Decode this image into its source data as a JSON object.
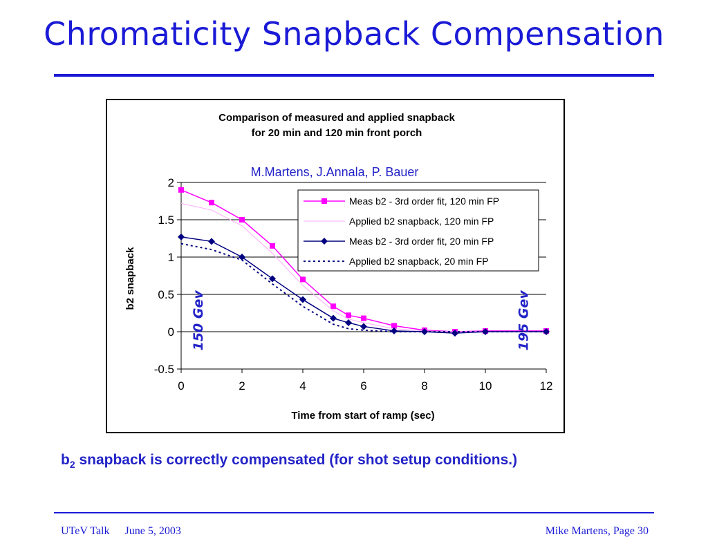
{
  "slide": {
    "title": "Chromaticity Snapback Compensation",
    "caption_main": "b",
    "caption_sub": "2",
    "caption_rest": " snapback is correctly compensated (for shot setup conditions.)",
    "footer_talk": "UTeV Talk",
    "footer_date": "June 5, 2003",
    "footer_right": "Mike Martens, Page 30"
  },
  "colors": {
    "title": "#1a1ad6",
    "meas120": "#ff00ff",
    "applied120": "#ffaaff",
    "meas20": "#000080",
    "applied20": "#000080",
    "annotation": "#2323c8"
  },
  "chart_data": {
    "type": "line",
    "title_line1": "Comparison of measured and applied snapback",
    "title_line2": "for 20 min and 120 min front porch",
    "subtitle": "M.Martens, J.Annala, P. Bauer",
    "xlabel": "Time from start of ramp (sec)",
    "ylabel": "b2 snapback",
    "xlim": [
      0,
      12
    ],
    "ylim": [
      -0.5,
      2
    ],
    "xticks": [
      0,
      2,
      4,
      6,
      8,
      10,
      12
    ],
    "yticks": [
      -0.5,
      0,
      0.5,
      1,
      1.5,
      2
    ],
    "ytick_labels": [
      "-0.5",
      "0",
      "0.5",
      "1",
      "1.5",
      "2"
    ],
    "grid_y": true,
    "legend_position": "top-right",
    "annotations": [
      {
        "text": "150 Gev",
        "x": 0.7,
        "y": 0.15
      },
      {
        "text": "195 Gev",
        "x": 11.4,
        "y": 0.15
      }
    ],
    "series": [
      {
        "name": "Meas b2 - 3rd order fit, 120 min FP",
        "style": "solid-square",
        "x": [
          0,
          1,
          2,
          3,
          4,
          5,
          5.5,
          6,
          7,
          8,
          9,
          10,
          12
        ],
        "y": [
          1.9,
          1.73,
          1.5,
          1.15,
          0.7,
          0.34,
          0.22,
          0.18,
          0.08,
          0.02,
          0.0,
          0.01,
          0.01
        ]
      },
      {
        "name": "Applied b2 snapback, 120 min FP",
        "style": "thin",
        "x": [
          0,
          1,
          2,
          3,
          4,
          5,
          5.5,
          6,
          7,
          8,
          9,
          10,
          12
        ],
        "y": [
          1.72,
          1.63,
          1.42,
          1.05,
          0.62,
          0.28,
          0.17,
          0.12,
          0.04,
          0.01,
          0.0,
          0.0,
          0.0
        ]
      },
      {
        "name": "Meas b2 - 3rd order fit, 20 min FP",
        "style": "solid-diamond",
        "x": [
          0,
          1,
          2,
          3,
          4,
          5,
          5.5,
          6,
          7,
          8,
          9,
          10,
          12
        ],
        "y": [
          1.27,
          1.21,
          1.0,
          0.71,
          0.43,
          0.18,
          0.12,
          0.07,
          0.01,
          0.0,
          -0.02,
          0.0,
          0.0
        ]
      },
      {
        "name": "Applied b2 snapback, 20 min FP",
        "style": "dotted",
        "x": [
          0,
          1,
          2,
          3,
          4,
          5,
          5.5,
          6,
          7,
          8,
          9,
          10,
          12
        ],
        "y": [
          1.18,
          1.1,
          0.96,
          0.64,
          0.34,
          0.1,
          0.04,
          0.02,
          0.0,
          0.0,
          0.0,
          0.0,
          0.0
        ]
      }
    ]
  }
}
